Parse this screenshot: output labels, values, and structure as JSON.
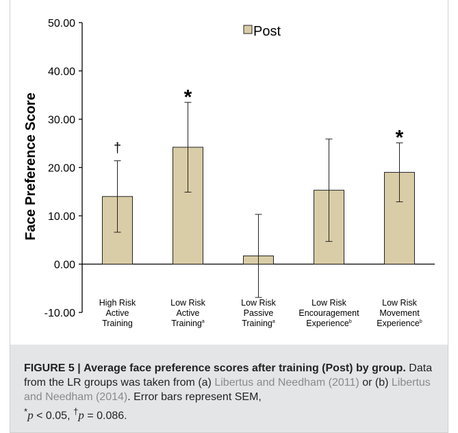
{
  "chart_data": {
    "type": "bar",
    "categories": [
      [
        "High Risk",
        "Active",
        "Training"
      ],
      [
        "Low Risk",
        "Active",
        "Training"
      ],
      [
        "Low Risk",
        "Passive",
        "Training"
      ],
      [
        "Low Risk",
        "Encouragement",
        "Experience"
      ],
      [
        "Low Risk",
        "Movement",
        "Experience"
      ]
    ],
    "category_superscripts": [
      "",
      "a",
      "a",
      "b",
      "b"
    ],
    "series": [
      {
        "name": "Post",
        "values": [
          14.0,
          24.2,
          1.7,
          15.3,
          19.0
        ],
        "sem": [
          7.4,
          9.3,
          8.6,
          10.6,
          6.1
        ]
      }
    ],
    "significance_markers": [
      "†",
      "*",
      "",
      "",
      "*"
    ],
    "ylabel": "Face Preference Score",
    "ylim": [
      -10,
      50
    ],
    "yticks": [
      -10,
      0,
      10,
      20,
      30,
      40,
      50
    ],
    "ytick_labels": [
      "-10.00",
      "0.00",
      "10.00",
      "20.00",
      "30.00",
      "40.00",
      "50.00"
    ],
    "legend_position": "top",
    "grid": false,
    "bar_color": "#d9cda7",
    "bar_edge_color": "#222222"
  },
  "caption": {
    "label": "FIGURE 5 |",
    "title": "Average face preference scores after training (Post) by group.",
    "text_1": "Data from the LR groups was taken from (a)",
    "ref_1": "Libertus and Needham (2011)",
    "text_2": "or (b)",
    "ref_2": "Libertus and Needham (2014)",
    "text_3": ". Error bars represent SEM,",
    "stat_1_mark": "*",
    "stat_1_var": "p",
    "stat_1_rest": " < 0.05,",
    "stat_2_mark": "†",
    "stat_2_var": "p",
    "stat_2_rest": " = 0.086."
  }
}
